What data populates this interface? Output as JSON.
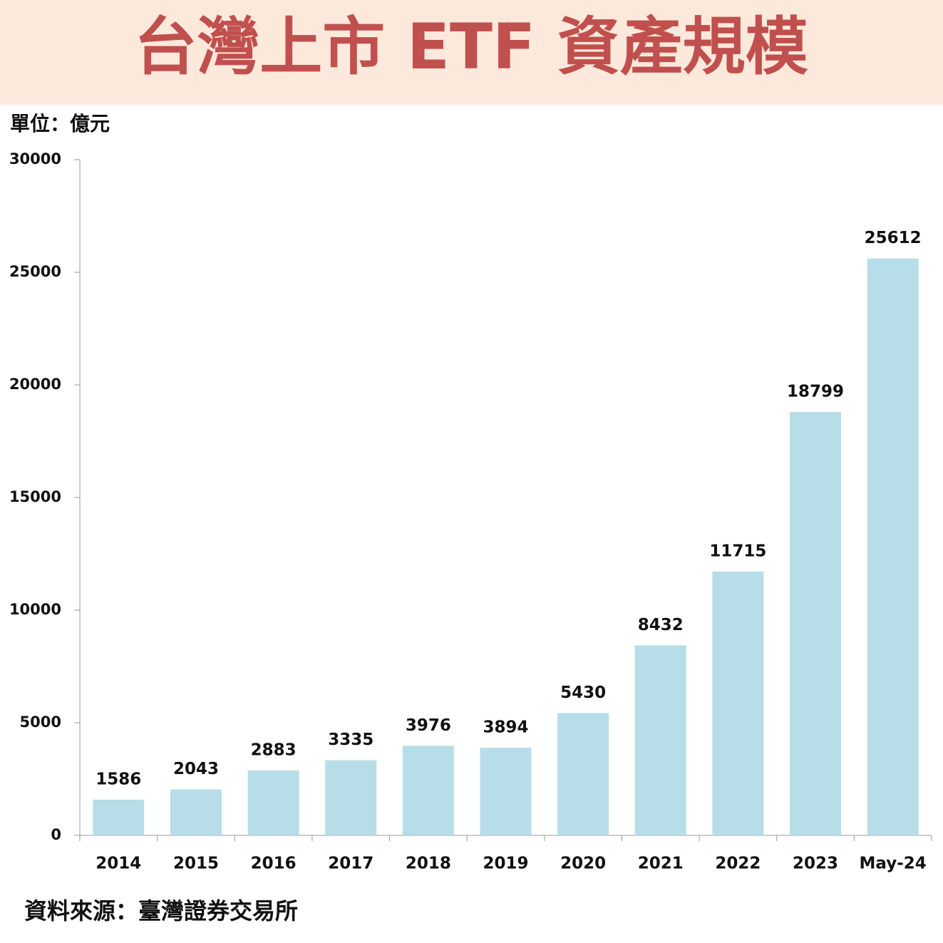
{
  "chart_data": {
    "type": "bar",
    "title": "台灣上市 ETF 資產規模",
    "unit": "單位：億元",
    "source": "資料來源：臺灣證券交易所",
    "categories": [
      "2014",
      "2015",
      "2016",
      "2017",
      "2018",
      "2019",
      "2020",
      "2021",
      "2022",
      "2023",
      "May-24"
    ],
    "values": [
      1586,
      2043,
      2883,
      3335,
      3976,
      3894,
      5430,
      8432,
      11715,
      18799,
      25612
    ],
    "color": "#b7dde8",
    "ylim": [
      0,
      30000
    ],
    "yticks": [
      0,
      5000,
      10000,
      15000,
      20000,
      25000,
      30000
    ],
    "grid": false
  }
}
